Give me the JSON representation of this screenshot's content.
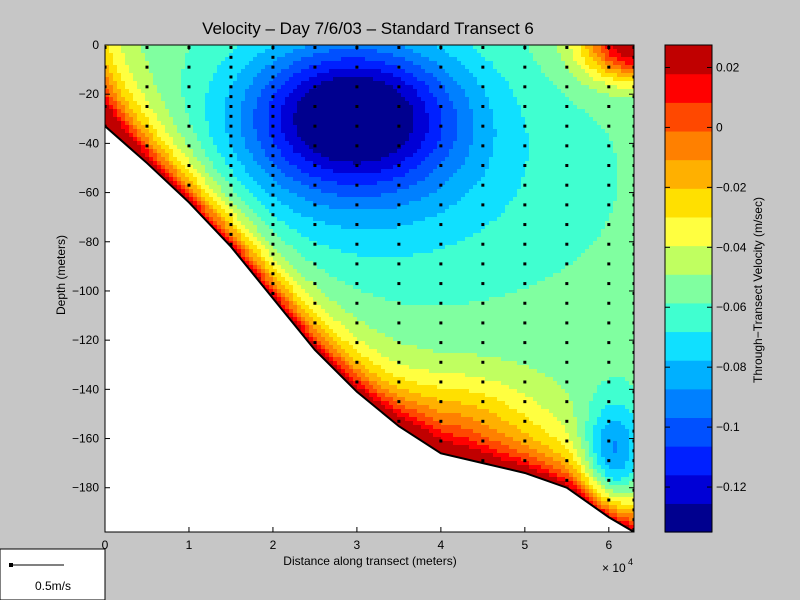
{
  "chart_data": {
    "type": "heatmap",
    "subtype": "filled-contour",
    "title": "Velocity – Day 7/6/03 – Standard Transect 6",
    "xlabel": "Distance along transect (meters)",
    "ylabel": "Depth (meters)",
    "x_multiplier_label": "× 10",
    "x_multiplier_exponent": "4",
    "xlim": [
      0,
      6.3
    ],
    "ylim": [
      -198,
      0
    ],
    "x_ticks": [
      "0",
      "1",
      "2",
      "3",
      "4",
      "5",
      "6"
    ],
    "y_ticks": [
      "0",
      "−20",
      "−40",
      "−60",
      "−80",
      "−100",
      "−120",
      "−140",
      "−160",
      "−180"
    ],
    "colorbar": {
      "label": "Through−Transect Velocity (m/sec)",
      "range": [
        -0.135,
        0.0275
      ],
      "tick_values": [
        0.02,
        0,
        -0.02,
        -0.04,
        -0.06,
        -0.08,
        -0.1,
        -0.12
      ],
      "tick_labels": [
        "0.02",
        "0",
        "−0.02",
        "−0.04",
        "−0.06",
        "−0.08",
        "−0.1",
        "−0.12"
      ],
      "colors": [
        "#00008f",
        "#0000d6",
        "#0020ff",
        "#0050ff",
        "#0080ff",
        "#00b0ff",
        "#10e0ff",
        "#40ffd0",
        "#80ffa0",
        "#c0ff60",
        "#ffff40",
        "#ffe000",
        "#ffb000",
        "#ff8000",
        "#ff4800",
        "#ff0000",
        "#c00000"
      ]
    },
    "bathymetry": {
      "x": [
        0,
        0.5,
        1,
        1.5,
        2,
        2.5,
        3,
        3.5,
        4,
        4.5,
        5,
        5.5,
        6,
        6.3
      ],
      "depth": [
        -33,
        -48,
        -64,
        -82,
        -103,
        -124,
        -141,
        -155,
        -166,
        -170,
        -174,
        -180,
        -192,
        -198
      ]
    },
    "core": {
      "x": 2.95,
      "depth": -28,
      "velocity": -0.135
    },
    "surface_positive": {
      "x": 6.3,
      "depth": 0,
      "velocity": 0.027
    },
    "station_x": [
      0,
      0.5,
      1,
      1.5,
      2,
      2.5,
      3,
      3.5,
      4,
      4.5,
      5,
      5.5,
      6,
      6.3
    ],
    "dense_station_x": [
      1.5,
      2,
      6.3
    ],
    "legend": {
      "scale_label": "0.5m/s"
    }
  }
}
